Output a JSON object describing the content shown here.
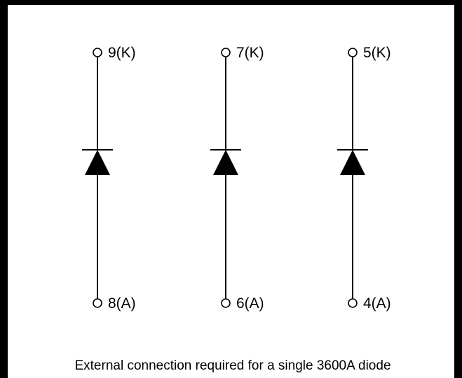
{
  "diodes": [
    {
      "cathode_label": "9(K)",
      "anode_label": "8(A)"
    },
    {
      "cathode_label": "7(K)",
      "anode_label": "6(A)"
    },
    {
      "cathode_label": "5(K)",
      "anode_label": "4(A)"
    }
  ],
  "caption": "External connection required for a single 3600A diode",
  "colors": {
    "ink": "#000000",
    "background": "#ffffff"
  }
}
